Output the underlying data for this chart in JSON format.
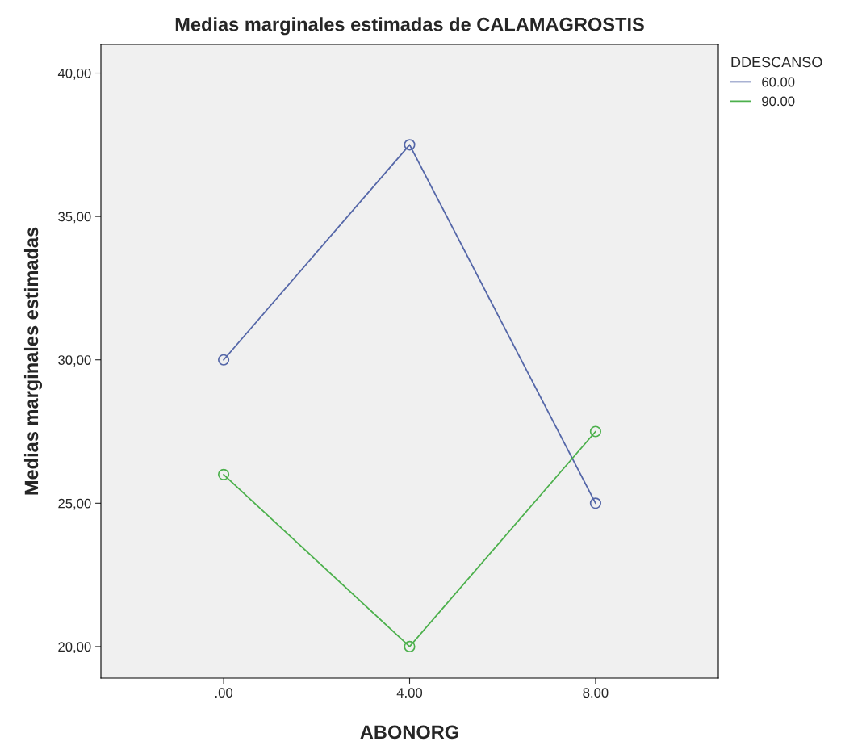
{
  "chart_data": {
    "type": "line",
    "title": "Medias marginales estimadas de CALAMAGROSTIS",
    "xlabel": "ABONORG",
    "ylabel": "Medias marginales estimadas",
    "legend_title": "DDESCANSO",
    "categories": [
      ".00",
      "4.00",
      "8.00"
    ],
    "series": [
      {
        "name": "60.00",
        "color": "#5567a8",
        "values": [
          30,
          37.5,
          25
        ]
      },
      {
        "name": "90.00",
        "color": "#4cb04c",
        "values": [
          26,
          20,
          27.5
        ]
      }
    ],
    "ylim": [
      18.9,
      41.0
    ],
    "yticks": [
      {
        "value": 20,
        "label": "20,00"
      },
      {
        "value": 25,
        "label": "25,00"
      },
      {
        "value": 30,
        "label": "30,00"
      },
      {
        "value": 35,
        "label": "35,00"
      },
      {
        "value": 40,
        "label": "40,00"
      }
    ],
    "grid": false,
    "legend": "top right",
    "marker": "circle",
    "line_style": "solid"
  }
}
